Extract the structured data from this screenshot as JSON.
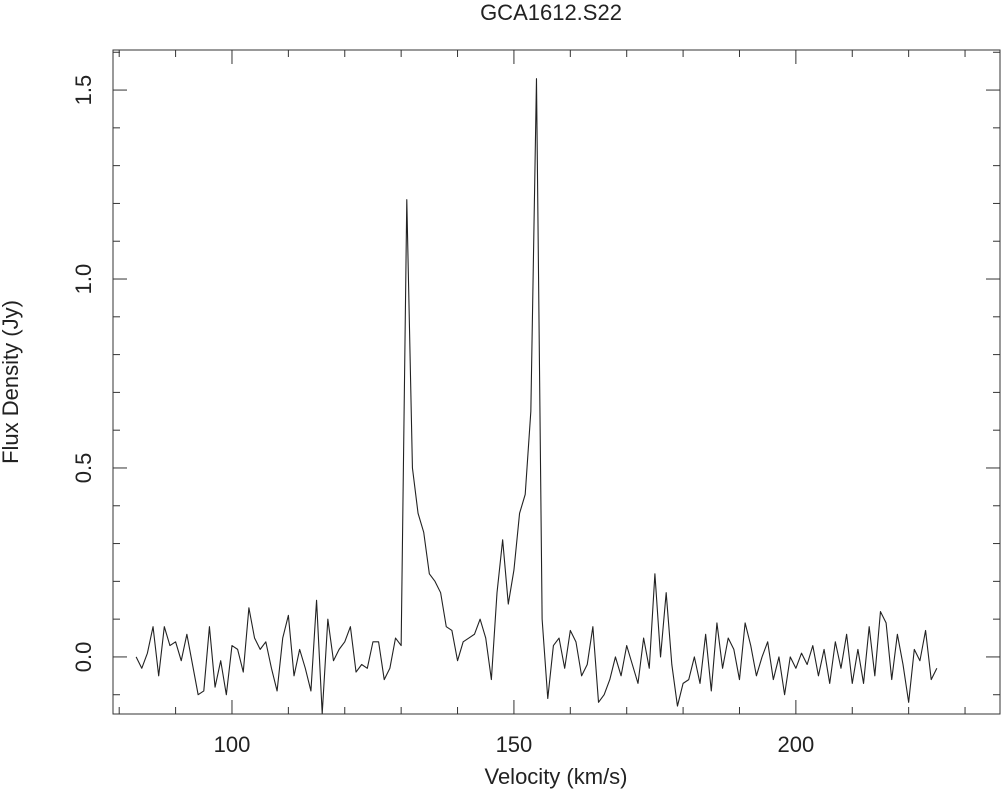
{
  "chart_data": {
    "type": "line",
    "title": "GCA1612.S22",
    "xlabel": "Velocity (km/s)",
    "ylabel": "Flux Density (Jy)",
    "color": "#222222",
    "xlim": [
      78.9,
      236.2
    ],
    "ylim": [
      -0.151,
      1.606
    ],
    "xticks": [
      100,
      150,
      200
    ],
    "xminorticks": [
      80,
      90,
      110,
      120,
      130,
      140,
      160,
      170,
      180,
      190,
      210,
      220,
      230
    ],
    "yticks": [
      {
        "value": 0,
        "label": "0.0"
      },
      0.5,
      {
        "value": 1,
        "label": "1.0"
      },
      1.5
    ],
    "yminorticks": [
      -0.1,
      0.1,
      0.2,
      0.3,
      0.4,
      0.6,
      0.7,
      0.8,
      0.9,
      1.1,
      1.2,
      1.3,
      1.4,
      1.6
    ],
    "x": [
      83,
      84,
      85,
      86,
      87,
      88,
      89,
      90,
      91,
      92,
      93,
      94,
      95,
      96,
      97,
      98,
      99,
      100,
      101,
      102,
      103,
      104,
      105,
      106,
      107,
      108,
      109,
      110,
      111,
      112,
      113,
      114,
      115,
      116,
      117,
      118,
      119,
      120,
      121,
      122,
      123,
      124,
      125,
      126,
      127,
      128,
      129,
      130,
      131,
      132,
      133,
      134,
      135,
      136,
      137,
      138,
      139,
      140,
      141,
      142,
      143,
      144,
      145,
      146,
      147,
      148,
      149,
      150,
      151,
      152,
      153,
      154,
      155,
      156,
      157,
      158,
      159,
      160,
      161,
      162,
      163,
      164,
      165,
      166,
      167,
      168,
      169,
      170,
      171,
      172,
      173,
      174,
      175,
      176,
      177,
      178,
      179,
      180,
      181,
      182,
      183,
      184,
      185,
      186,
      187,
      188,
      189,
      190,
      191,
      192,
      193,
      194,
      195,
      196,
      197,
      198,
      199,
      200,
      201,
      202,
      203,
      204,
      205,
      206,
      207,
      208,
      209,
      210,
      211,
      212,
      213,
      214,
      215,
      216,
      217,
      218,
      219,
      220,
      221,
      222,
      223,
      224,
      225
    ],
    "values": [
      0.0,
      -0.03,
      0.01,
      0.08,
      -0.05,
      0.08,
      0.03,
      0.04,
      -0.01,
      0.06,
      -0.02,
      -0.1,
      -0.09,
      0.08,
      -0.08,
      -0.01,
      -0.1,
      0.03,
      0.02,
      -0.04,
      0.13,
      0.05,
      0.02,
      0.04,
      -0.03,
      -0.09,
      0.05,
      0.11,
      -0.05,
      0.02,
      -0.03,
      -0.09,
      0.15,
      -0.15,
      0.1,
      -0.01,
      0.02,
      0.04,
      0.08,
      -0.04,
      -0.02,
      -0.03,
      0.04,
      0.04,
      -0.06,
      -0.03,
      0.05,
      0.03,
      1.21,
      0.5,
      0.38,
      0.33,
      0.22,
      0.2,
      0.17,
      0.08,
      0.07,
      -0.01,
      0.04,
      0.05,
      0.06,
      0.1,
      0.05,
      -0.06,
      0.17,
      0.31,
      0.14,
      0.23,
      0.38,
      0.43,
      0.65,
      1.53,
      0.1,
      -0.11,
      0.03,
      0.05,
      -0.03,
      0.07,
      0.04,
      -0.05,
      -0.02,
      0.08,
      -0.12,
      -0.1,
      -0.06,
      0.0,
      -0.05,
      0.03,
      -0.02,
      -0.07,
      0.05,
      -0.03,
      0.22,
      0.0,
      0.17,
      -0.02,
      -0.13,
      -0.07,
      -0.06,
      0.0,
      -0.07,
      0.06,
      -0.09,
      0.09,
      -0.03,
      0.05,
      0.02,
      -0.06,
      0.09,
      0.03,
      -0.05,
      0.0,
      0.04,
      -0.06,
      0.0,
      -0.1,
      0.0,
      -0.03,
      0.01,
      -0.02,
      0.03,
      -0.05,
      0.02,
      -0.07,
      0.04,
      -0.03,
      0.06,
      -0.07,
      0.02,
      -0.07,
      0.08,
      -0.05,
      0.12,
      0.09,
      -0.06,
      0.06,
      -0.02,
      -0.12,
      0.02,
      -0.01,
      0.07,
      -0.06,
      -0.03
    ]
  }
}
